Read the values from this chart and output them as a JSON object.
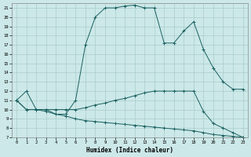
{
  "xlabel": "Humidex (Indice chaleur)",
  "xlim": [
    -0.5,
    23.5
  ],
  "ylim": [
    7,
    21.5
  ],
  "yticks": [
    7,
    8,
    9,
    10,
    11,
    12,
    13,
    14,
    15,
    16,
    17,
    18,
    19,
    20,
    21
  ],
  "xticks": [
    0,
    1,
    2,
    3,
    4,
    5,
    6,
    7,
    8,
    9,
    10,
    11,
    12,
    13,
    14,
    15,
    16,
    17,
    18,
    19,
    20,
    21,
    22,
    23
  ],
  "bg_color": "#cce8e8",
  "grid_color": "#aacccc",
  "line_color": "#1a6060",
  "line1_x": [
    0,
    1,
    2,
    3,
    4,
    5,
    6,
    7,
    8,
    9,
    10,
    11,
    12,
    13,
    14,
    15,
    16,
    17,
    18,
    19,
    20,
    21,
    22,
    23
  ],
  "line1_y": [
    11,
    12,
    10,
    10,
    9.5,
    9.5,
    11,
    17,
    20,
    21,
    21,
    21.2,
    21.3,
    21,
    21,
    17.2,
    17.2,
    18.5,
    19.5,
    16.5,
    14.5,
    13,
    12.2,
    12.2
  ],
  "line2_x": [
    0,
    1,
    2,
    3,
    4,
    5,
    6,
    7,
    8,
    9,
    10,
    11,
    12,
    13,
    14,
    15,
    16,
    17,
    18,
    19,
    20,
    21,
    22,
    23
  ],
  "line2_y": [
    11,
    10,
    10,
    10,
    10,
    10,
    10,
    10.2,
    10.5,
    10.7,
    11,
    11.2,
    11.5,
    11.8,
    12,
    12,
    12,
    12,
    12,
    9.8,
    8.5,
    8.0,
    7.5,
    7.0
  ],
  "line3_x": [
    0,
    1,
    2,
    3,
    4,
    5,
    6,
    7,
    8,
    9,
    10,
    11,
    12,
    13,
    14,
    15,
    16,
    17,
    18,
    19,
    20,
    21,
    22,
    23
  ],
  "line3_y": [
    11,
    10,
    10,
    9.8,
    9.5,
    9.3,
    9.0,
    8.8,
    8.7,
    8.6,
    8.5,
    8.4,
    8.3,
    8.2,
    8.1,
    8.0,
    7.9,
    7.8,
    7.7,
    7.5,
    7.3,
    7.2,
    7.1,
    7.0
  ]
}
